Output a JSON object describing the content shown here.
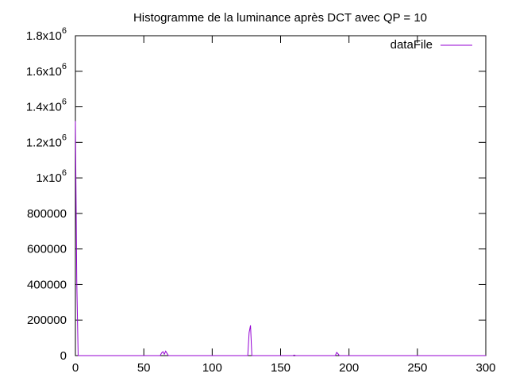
{
  "chart_data": {
    "type": "line",
    "title": "Histogramme de la luminance après DCT avec QP = 10",
    "xlabel": "",
    "ylabel": "",
    "xlim": [
      0,
      300
    ],
    "ylim": [
      0,
      1800000
    ],
    "x_ticks": [
      0,
      50,
      100,
      150,
      200,
      250,
      300
    ],
    "x_tick_labels": [
      "0",
      "50",
      "100",
      "150",
      "200",
      "250",
      "300"
    ],
    "y_ticks": [
      {
        "value": 0,
        "base": "0",
        "exp": ""
      },
      {
        "value": 200000,
        "base": "200000",
        "exp": ""
      },
      {
        "value": 400000,
        "base": "400000",
        "exp": ""
      },
      {
        "value": 600000,
        "base": "600000",
        "exp": ""
      },
      {
        "value": 800000,
        "base": "800000",
        "exp": ""
      },
      {
        "value": 1000000,
        "base": "1x10",
        "exp": "6"
      },
      {
        "value": 1200000,
        "base": "1.2x10",
        "exp": "6"
      },
      {
        "value": 1400000,
        "base": "1.4x10",
        "exp": "6"
      },
      {
        "value": 1600000,
        "base": "1.6x10",
        "exp": "6"
      },
      {
        "value": 1800000,
        "base": "1.8x10",
        "exp": "6"
      }
    ],
    "grid": false,
    "legend_position": "top-right",
    "series": [
      {
        "name": "dataFile",
        "color": "#9400d3",
        "points": [
          [
            0,
            1320000
          ],
          [
            1,
            420000
          ],
          [
            2,
            0
          ],
          [
            62,
            0
          ],
          [
            63,
            15000
          ],
          [
            64,
            22000
          ],
          [
            65,
            8000
          ],
          [
            66,
            25000
          ],
          [
            67,
            12000
          ],
          [
            68,
            0
          ],
          [
            126,
            0
          ],
          [
            127,
            130000
          ],
          [
            128,
            170000
          ],
          [
            129,
            0
          ],
          [
            159,
            0
          ],
          [
            160,
            3000
          ],
          [
            161,
            0
          ],
          [
            190,
            0
          ],
          [
            191,
            18000
          ],
          [
            192,
            10000
          ],
          [
            193,
            0
          ],
          [
            300,
            0
          ]
        ]
      }
    ]
  }
}
